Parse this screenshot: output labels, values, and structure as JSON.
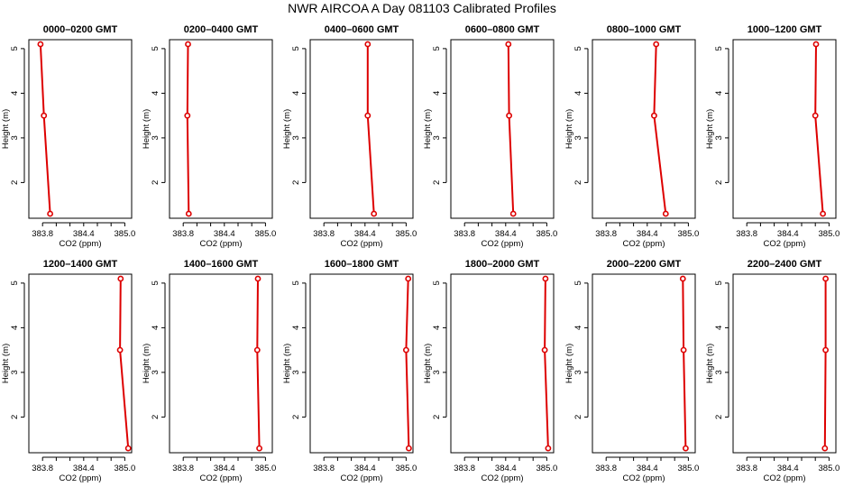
{
  "figure": {
    "title": "NWR AIRCOA A  Day 081103  Calibrated Profiles"
  },
  "chart_data": [
    {
      "type": "line",
      "title": "0000–0200 GMT",
      "xlabel": "CO2 (ppm)",
      "ylabel": "Height (m)",
      "x_ticks": [
        "383.8",
        "384.4",
        "385.0"
      ],
      "y_ticks": [
        "2",
        "3",
        "4",
        "5"
      ],
      "xlim": [
        383.6,
        385.1
      ],
      "ylim": [
        1.2,
        5.2
      ],
      "grid": false,
      "color": "#dd0000",
      "x": [
        383.77,
        383.82,
        383.91
      ],
      "y": [
        5.1,
        3.5,
        1.3
      ]
    },
    {
      "type": "line",
      "title": "0200–0400 GMT",
      "xlabel": "CO2 (ppm)",
      "ylabel": "Height (m)",
      "x_ticks": [
        "383.8",
        "384.4",
        "385.0"
      ],
      "y_ticks": [
        "2",
        "3",
        "4",
        "5"
      ],
      "xlim": [
        383.6,
        385.1
      ],
      "ylim": [
        1.2,
        5.2
      ],
      "grid": false,
      "color": "#dd0000",
      "x": [
        383.87,
        383.86,
        383.88
      ],
      "y": [
        5.1,
        3.5,
        1.3
      ]
    },
    {
      "type": "line",
      "title": "0400–0600 GMT",
      "xlabel": "CO2 (ppm)",
      "ylabel": "Height (m)",
      "x_ticks": [
        "383.8",
        "384.4",
        "385.0"
      ],
      "y_ticks": [
        "2",
        "3",
        "4",
        "5"
      ],
      "xlim": [
        383.6,
        385.1
      ],
      "ylim": [
        1.2,
        5.2
      ],
      "grid": false,
      "color": "#dd0000",
      "x": [
        384.44,
        384.44,
        384.53
      ],
      "y": [
        5.1,
        3.5,
        1.3
      ]
    },
    {
      "type": "line",
      "title": "0600–0800 GMT",
      "xlabel": "CO2 (ppm)",
      "ylabel": "Height (m)",
      "x_ticks": [
        "383.8",
        "384.4",
        "385.0"
      ],
      "y_ticks": [
        "2",
        "3",
        "4",
        "5"
      ],
      "xlim": [
        383.6,
        385.1
      ],
      "ylim": [
        1.2,
        5.2
      ],
      "grid": false,
      "color": "#dd0000",
      "x": [
        384.44,
        384.45,
        384.51
      ],
      "y": [
        5.1,
        3.5,
        1.3
      ]
    },
    {
      "type": "line",
      "title": "0800–1000 GMT",
      "xlabel": "CO2 (ppm)",
      "ylabel": "Height (m)",
      "x_ticks": [
        "383.8",
        "384.4",
        "385.0"
      ],
      "y_ticks": [
        "2",
        "3",
        "4",
        "5"
      ],
      "xlim": [
        383.6,
        385.1
      ],
      "ylim": [
        1.2,
        5.2
      ],
      "grid": false,
      "color": "#dd0000",
      "x": [
        384.53,
        384.5,
        384.67
      ],
      "y": [
        5.1,
        3.5,
        1.3
      ]
    },
    {
      "type": "line",
      "title": "1000–1200 GMT",
      "xlabel": "CO2 (ppm)",
      "ylabel": "Height (m)",
      "x_ticks": [
        "383.8",
        "384.4",
        "385.0"
      ],
      "y_ticks": [
        "2",
        "3",
        "4",
        "5"
      ],
      "xlim": [
        383.6,
        385.1
      ],
      "ylim": [
        1.2,
        5.2
      ],
      "grid": false,
      "color": "#dd0000",
      "x": [
        384.81,
        384.8,
        384.91
      ],
      "y": [
        5.1,
        3.5,
        1.3
      ]
    },
    {
      "type": "line",
      "title": "1200–1400 GMT",
      "xlabel": "CO2 (ppm)",
      "ylabel": "Height (m)",
      "x_ticks": [
        "383.8",
        "384.4",
        "385.0"
      ],
      "y_ticks": [
        "2",
        "3",
        "4",
        "5"
      ],
      "xlim": [
        383.6,
        385.1
      ],
      "ylim": [
        1.2,
        5.2
      ],
      "grid": false,
      "color": "#dd0000",
      "x": [
        384.94,
        384.93,
        385.05
      ],
      "y": [
        5.1,
        3.5,
        1.3
      ]
    },
    {
      "type": "line",
      "title": "1400–1600 GMT",
      "xlabel": "CO2 (ppm)",
      "ylabel": "Height (m)",
      "x_ticks": [
        "383.8",
        "384.4",
        "385.0"
      ],
      "y_ticks": [
        "2",
        "3",
        "4",
        "5"
      ],
      "xlim": [
        383.6,
        385.1
      ],
      "ylim": [
        1.2,
        5.2
      ],
      "grid": false,
      "color": "#dd0000",
      "x": [
        384.89,
        384.88,
        384.91
      ],
      "y": [
        5.1,
        3.5,
        1.3
      ]
    },
    {
      "type": "line",
      "title": "1600–1800 GMT",
      "xlabel": "CO2 (ppm)",
      "ylabel": "Height (m)",
      "x_ticks": [
        "383.8",
        "384.4",
        "385.0"
      ],
      "y_ticks": [
        "2",
        "3",
        "4",
        "5"
      ],
      "xlim": [
        383.6,
        385.1
      ],
      "ylim": [
        1.2,
        5.2
      ],
      "grid": false,
      "color": "#dd0000",
      "x": [
        385.03,
        385.0,
        385.04
      ],
      "y": [
        5.1,
        3.5,
        1.3
      ]
    },
    {
      "type": "line",
      "title": "1800–2000 GMT",
      "xlabel": "CO2 (ppm)",
      "ylabel": "Height (m)",
      "x_ticks": [
        "383.8",
        "384.4",
        "385.0"
      ],
      "y_ticks": [
        "2",
        "3",
        "4",
        "5"
      ],
      "xlim": [
        383.6,
        385.1
      ],
      "ylim": [
        1.2,
        5.2
      ],
      "grid": false,
      "color": "#dd0000",
      "x": [
        384.98,
        384.97,
        385.02
      ],
      "y": [
        5.1,
        3.5,
        1.3
      ]
    },
    {
      "type": "line",
      "title": "2000–2200 GMT",
      "xlabel": "CO2 (ppm)",
      "ylabel": "Height (m)",
      "x_ticks": [
        "383.8",
        "384.4",
        "385.0"
      ],
      "y_ticks": [
        "2",
        "3",
        "4",
        "5"
      ],
      "xlim": [
        383.6,
        385.1
      ],
      "ylim": [
        1.2,
        5.2
      ],
      "grid": false,
      "color": "#dd0000",
      "x": [
        384.92,
        384.93,
        384.96
      ],
      "y": [
        5.1,
        3.5,
        1.3
      ]
    },
    {
      "type": "line",
      "title": "2200–2400 GMT",
      "xlabel": "CO2 (ppm)",
      "ylabel": "Height (m)",
      "x_ticks": [
        "383.8",
        "384.4",
        "385.0"
      ],
      "y_ticks": [
        "2",
        "3",
        "4",
        "5"
      ],
      "xlim": [
        383.6,
        385.1
      ],
      "ylim": [
        1.2,
        5.2
      ],
      "grid": false,
      "color": "#dd0000",
      "x": [
        384.95,
        384.95,
        384.94
      ],
      "y": [
        5.1,
        3.5,
        1.3
      ]
    }
  ]
}
